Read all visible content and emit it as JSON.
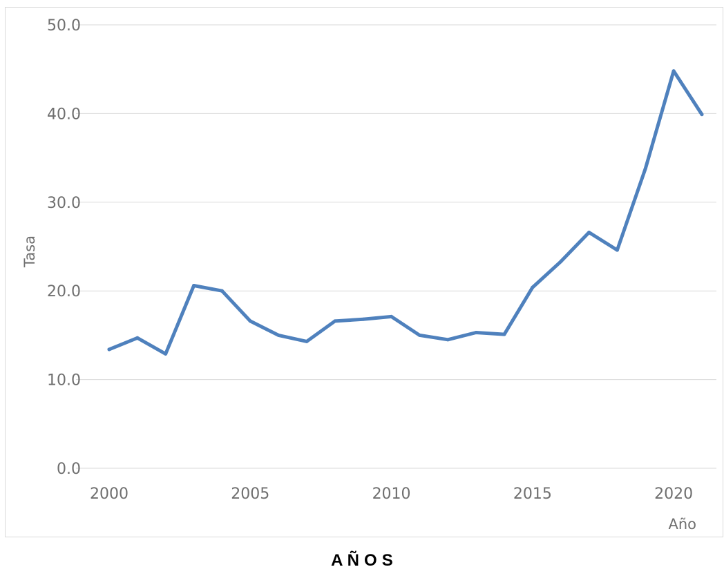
{
  "chart_data": {
    "type": "line",
    "title": "",
    "xlabel": "Año",
    "ylabel": "Tasa",
    "caption": "A Ñ O S",
    "xlim": [
      2000,
      2021
    ],
    "ylim": [
      0,
      50
    ],
    "x_ticks": [
      "2000",
      "2005",
      "2010",
      "2015",
      "2020"
    ],
    "y_ticks": [
      "0.0",
      "10.0",
      "20.0",
      "30.0",
      "40.0",
      "50.0"
    ],
    "grid": "horizontal",
    "line_color": "#4f81bd",
    "x": [
      2000,
      2001,
      2002,
      2003,
      2004,
      2005,
      2006,
      2007,
      2008,
      2009,
      2010,
      2011,
      2012,
      2013,
      2014,
      2015,
      2016,
      2017,
      2018,
      2019,
      2020,
      2021
    ],
    "series": [
      {
        "values": [
          13.4,
          14.7,
          12.9,
          20.6,
          20.0,
          16.6,
          15.0,
          14.3,
          16.6,
          16.8,
          17.1,
          15.0,
          14.5,
          15.3,
          15.1,
          20.4,
          23.3,
          26.6,
          24.6,
          33.8,
          44.8,
          39.9
        ]
      }
    ]
  }
}
